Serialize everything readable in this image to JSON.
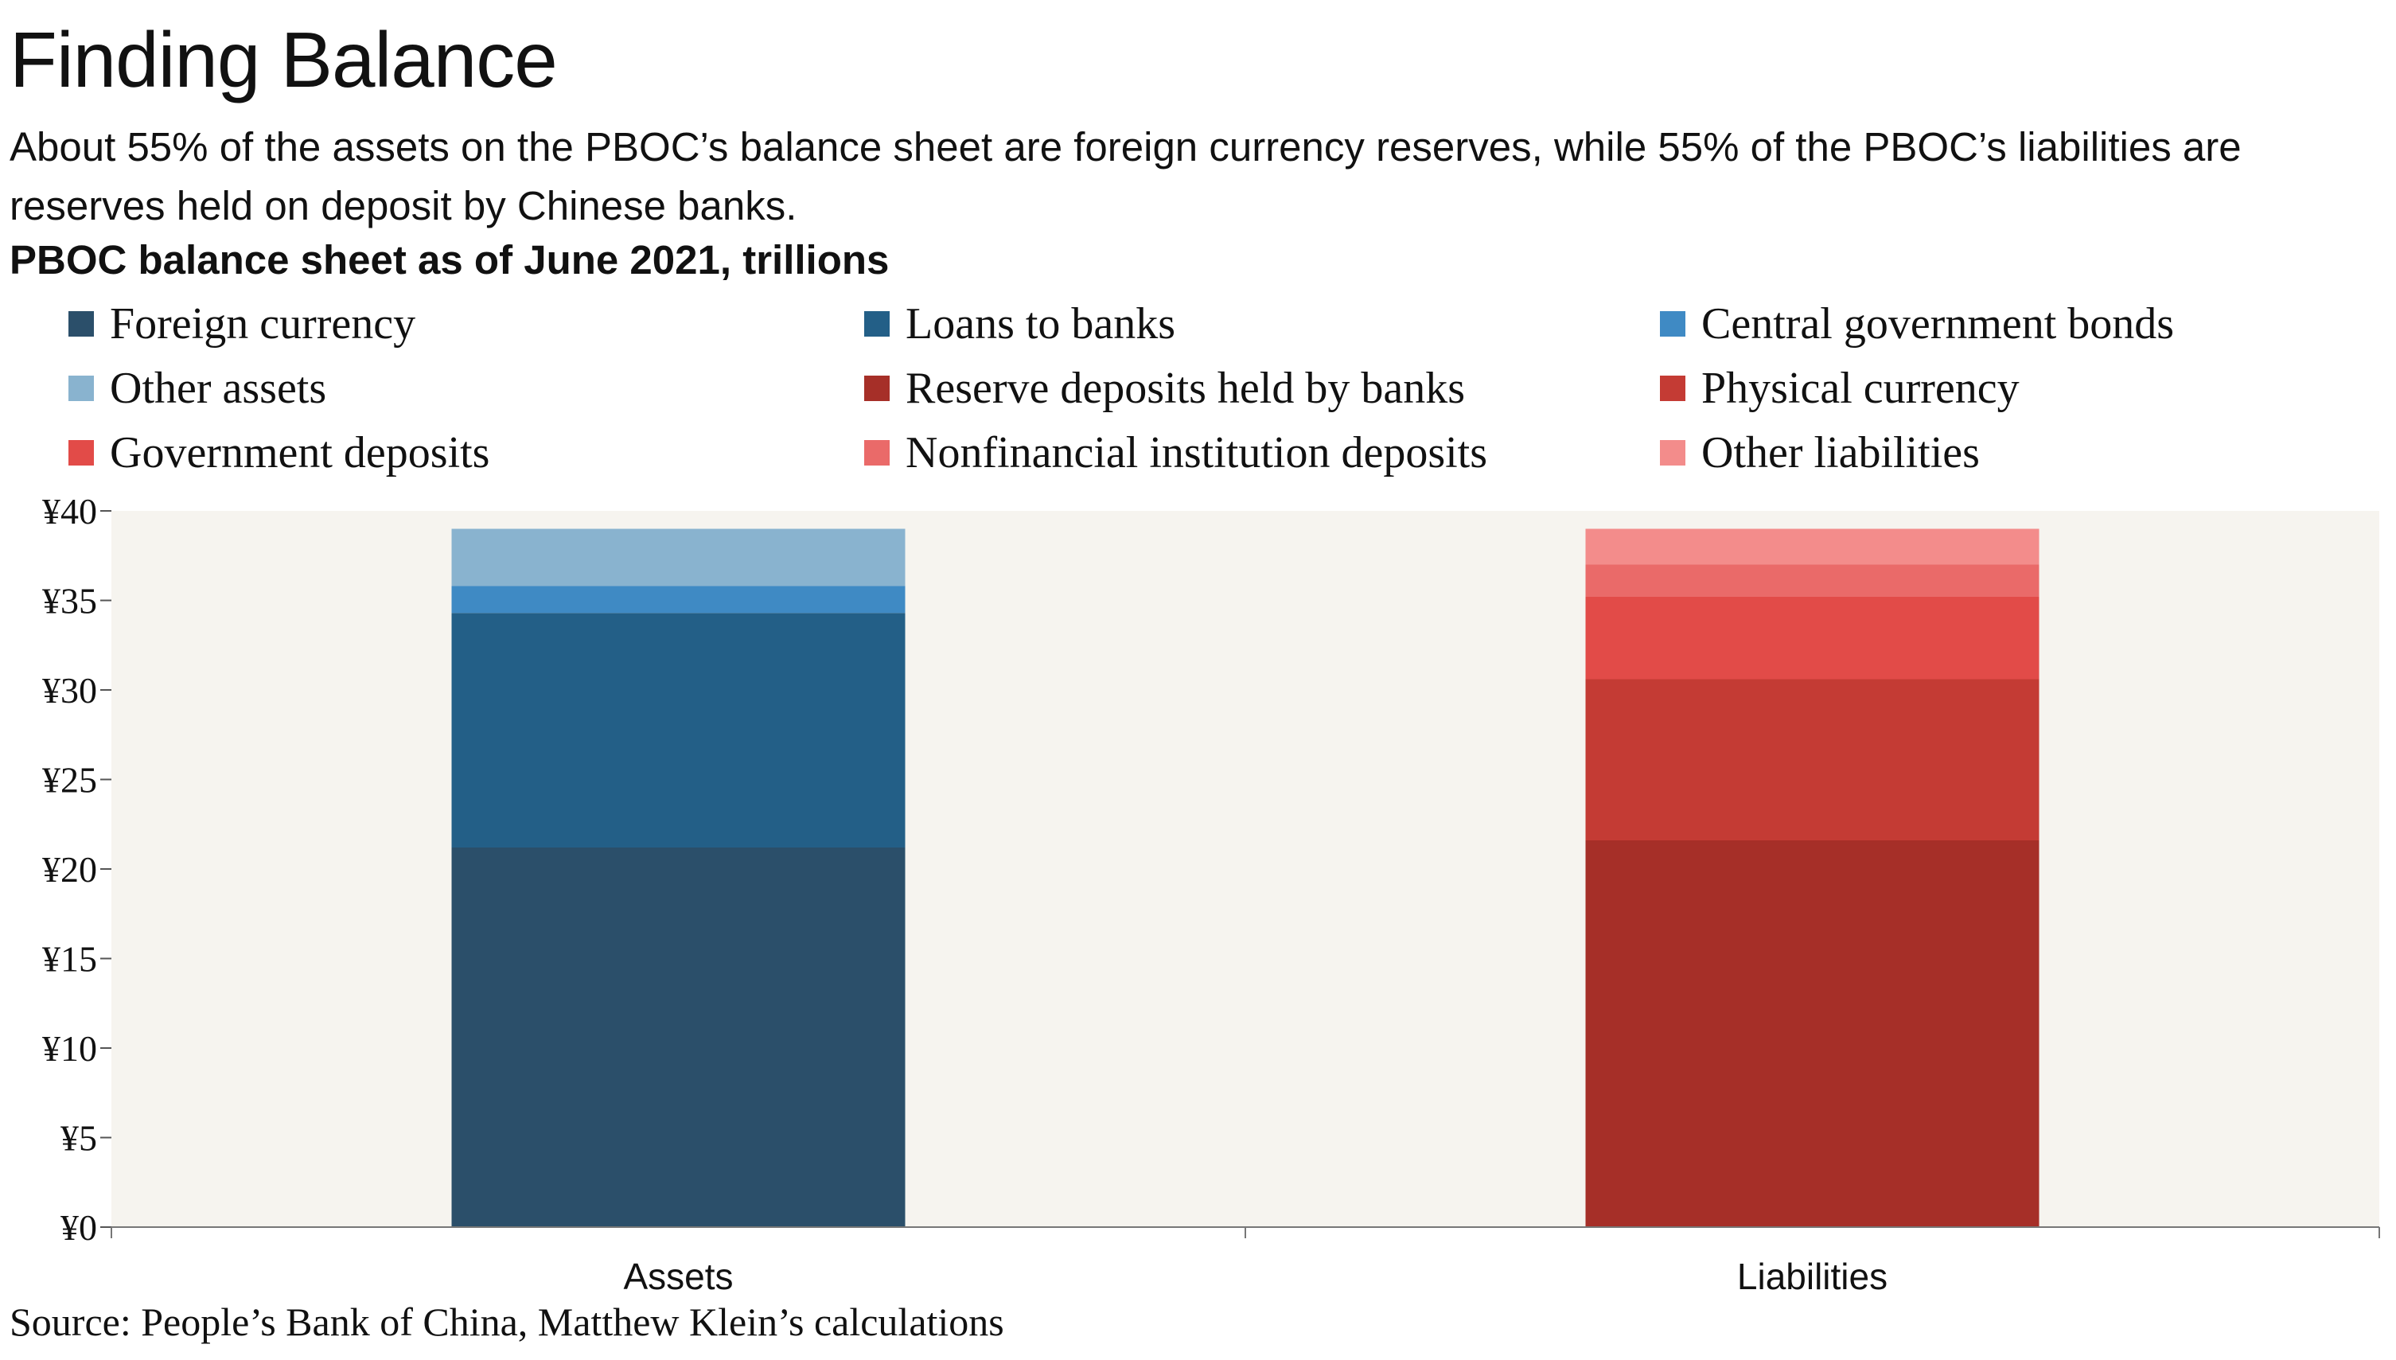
{
  "header": {
    "title": "Finding Balance",
    "subtitle": "About 55% of the assets on the PBOC’s balance sheet are foreign currency reserves, while 55% of the PBOC’s liabilities are reserves held on deposit by Chinese banks.",
    "chart_heading": "PBOC balance sheet as of June 2021, trillions"
  },
  "footer": {
    "source": "Source: People’s Bank of China, Matthew Klein’s calculations"
  },
  "chart_data": {
    "type": "bar",
    "stacked": true,
    "title": "PBOC balance sheet as of June 2021, trillions",
    "categories": [
      "Assets",
      "Liabilities"
    ],
    "xlabel": "",
    "ylabel": "",
    "ylim": [
      0,
      40
    ],
    "yticks": [
      0,
      5,
      10,
      15,
      20,
      25,
      30,
      35,
      40
    ],
    "ytick_labels": [
      "¥0",
      "¥5",
      "¥10",
      "¥15",
      "¥20",
      "¥25",
      "¥30",
      "¥35",
      "¥40"
    ],
    "legend_position": "top",
    "background_color": "#f6f4ef",
    "series": [
      {
        "name": "Foreign currency",
        "color": "#2b4f6a",
        "values": [
          21.2,
          0
        ]
      },
      {
        "name": "Loans to banks",
        "color": "#235f87",
        "values": [
          13.1,
          0
        ]
      },
      {
        "name": "Central government bonds",
        "color": "#3f8ac4",
        "values": [
          1.5,
          0
        ]
      },
      {
        "name": "Other assets",
        "color": "#89b3cf",
        "values": [
          3.2,
          0
        ]
      },
      {
        "name": "Reserve deposits held by banks",
        "color": "#a62f28",
        "values": [
          0,
          21.6
        ]
      },
      {
        "name": "Physical currency",
        "color": "#c43b34",
        "values": [
          0,
          9.0
        ]
      },
      {
        "name": "Government deposits",
        "color": "#e24b48",
        "values": [
          0,
          4.6
        ]
      },
      {
        "name": "Nonfinancial institution deposits",
        "color": "#ea6a69",
        "values": [
          0,
          1.8
        ]
      },
      {
        "name": "Other liabilities",
        "color": "#f38c8b",
        "values": [
          0,
          2.0
        ]
      }
    ]
  }
}
